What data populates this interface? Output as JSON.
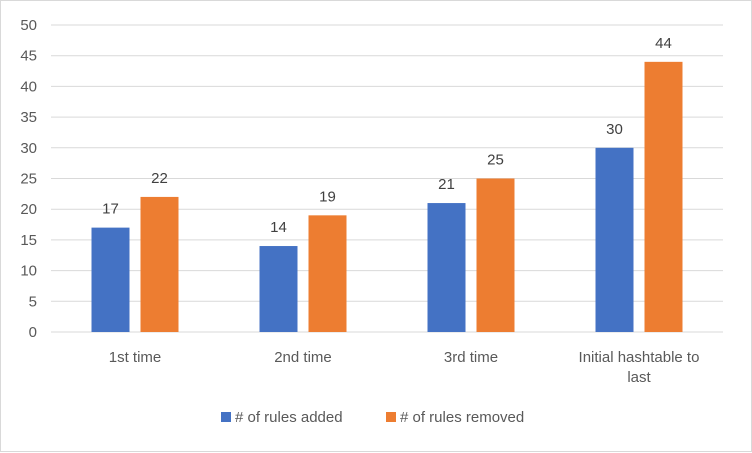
{
  "chart_data": {
    "type": "bar",
    "categories": [
      "1st time",
      "2nd time",
      "3rd time",
      "Initial hashtable to last"
    ],
    "series": [
      {
        "name": "# of rules added",
        "values": [
          17,
          14,
          21,
          30
        ],
        "color": "#4472C4"
      },
      {
        "name": "# of rules removed",
        "values": [
          22,
          19,
          25,
          44
        ],
        "color": "#ED7D31"
      }
    ],
    "ylim": [
      0,
      50
    ],
    "yticks": [
      0,
      5,
      10,
      15,
      20,
      25,
      30,
      35,
      40,
      45,
      50
    ],
    "grid": true,
    "legend_position": "bottom",
    "gridline_color": "#d9d9d9",
    "axis_color": "#d9d9d9"
  }
}
